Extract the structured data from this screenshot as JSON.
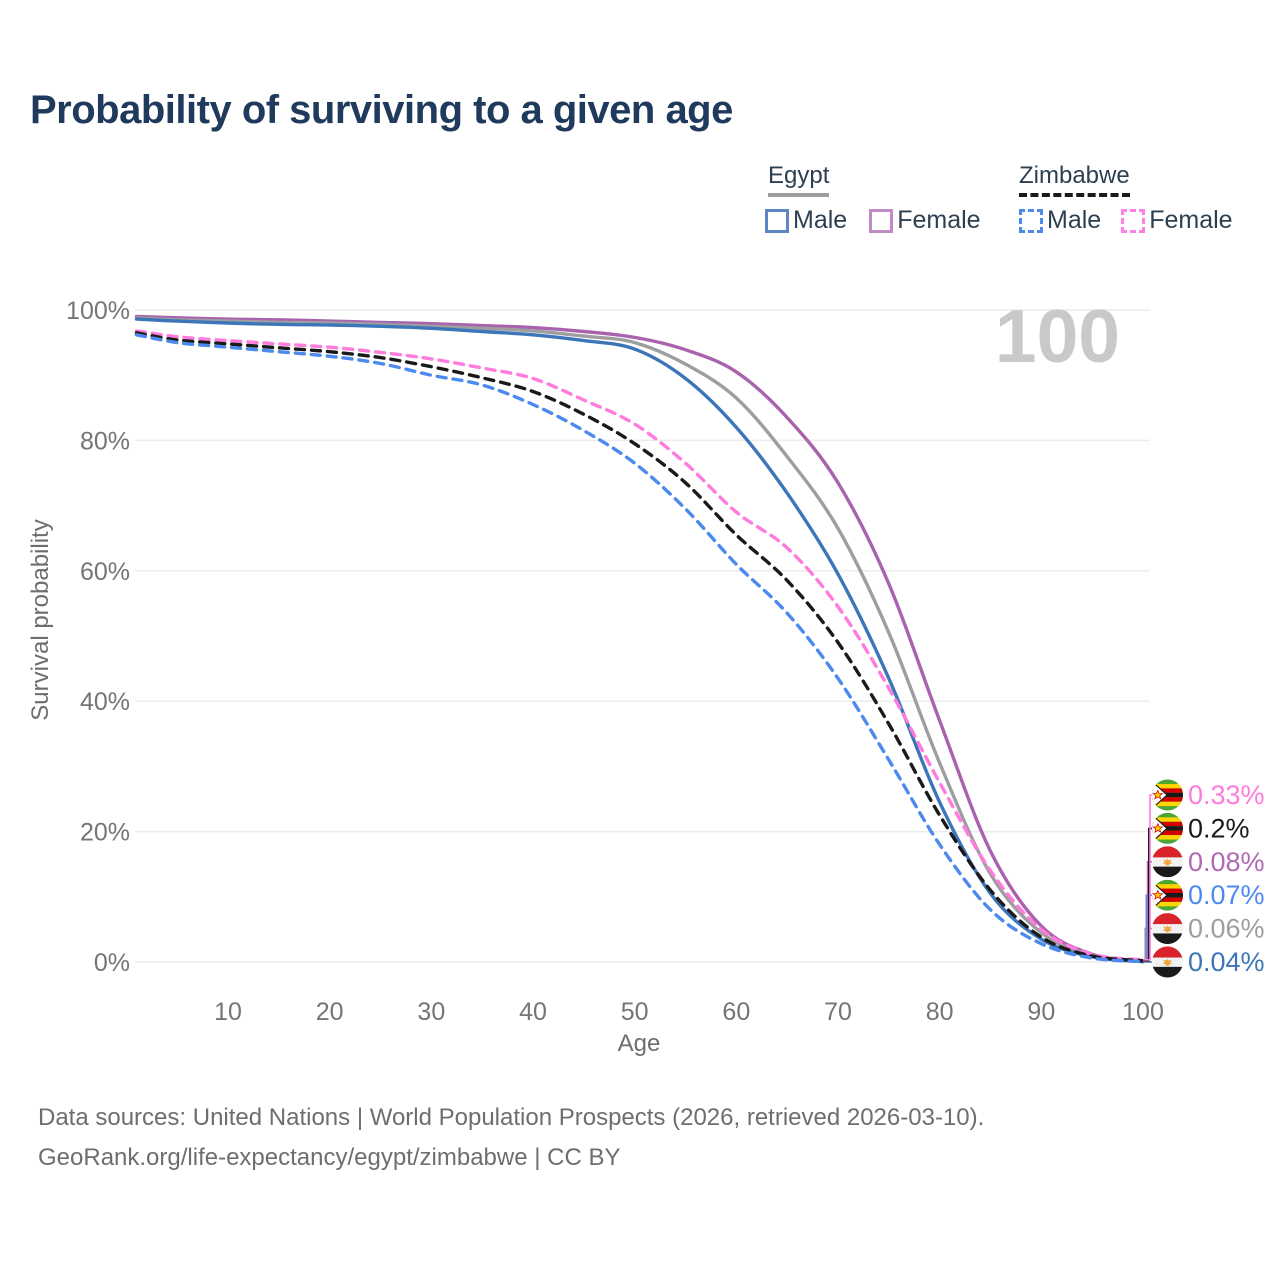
{
  "title": "Probability of surviving to a given age",
  "watermark_age_counter": "100",
  "legend": {
    "groups": [
      {
        "label": "Egypt",
        "line_style": "solid",
        "underline_color": "#9E9EA0",
        "items": [
          {
            "label": "Male",
            "box_color": "#5B85C2",
            "dashed": false
          },
          {
            "label": "Female",
            "box_color": "#C08BC4",
            "dashed": false
          }
        ]
      },
      {
        "label": "Zimbabwe",
        "line_style": "dashed",
        "underline_color": "#1A1A1A",
        "items": [
          {
            "label": "Male",
            "box_color": "#4D8AF0",
            "dashed": true
          },
          {
            "label": "Female",
            "box_color": "#FF80E5",
            "dashed": true
          }
        ]
      }
    ]
  },
  "chart_data": {
    "type": "line",
    "title": "Probability of surviving to a given age",
    "xlabel": "Age",
    "ylabel": "Survival probability",
    "xlim": [
      1,
      100
    ],
    "ylim": [
      0,
      100
    ],
    "grid": "horizontal",
    "xticks": [
      10,
      20,
      30,
      40,
      50,
      60,
      70,
      80,
      90,
      100
    ],
    "yticks": [
      "0%",
      "20%",
      "40%",
      "60%",
      "80%",
      "100%"
    ],
    "x": [
      1,
      5,
      10,
      15,
      20,
      25,
      30,
      35,
      40,
      45,
      50,
      55,
      60,
      65,
      70,
      75,
      80,
      85,
      90,
      95,
      100
    ],
    "series": [
      {
        "name": "Egypt Female",
        "country": "egypt",
        "sex": "female",
        "color": "#A963AE",
        "dashed": false,
        "values": [
          99.0,
          98.8,
          98.6,
          98.5,
          98.3,
          98.1,
          97.9,
          97.6,
          97.3,
          96.7,
          95.8,
          93.9,
          90.5,
          83.5,
          73.5,
          58.0,
          37.0,
          17.0,
          5.5,
          1.2,
          0.08
        ]
      },
      {
        "name": "Egypt Both sexes",
        "country": "egypt",
        "sex": "both",
        "color": "#9E9EA0",
        "dashed": false,
        "values": [
          98.8,
          98.5,
          98.3,
          98.1,
          98.0,
          97.8,
          97.5,
          97.2,
          96.8,
          96.0,
          95.0,
          91.7,
          86.5,
          77.5,
          66.5,
          50.5,
          30.5,
          13.5,
          4.5,
          1.0,
          0.06
        ]
      },
      {
        "name": "Egypt Male",
        "country": "egypt",
        "sex": "male",
        "color": "#3C76B9",
        "dashed": false,
        "values": [
          98.6,
          98.3,
          98.0,
          97.8,
          97.7,
          97.5,
          97.2,
          96.7,
          96.2,
          95.3,
          94.0,
          89.5,
          82.0,
          71.9,
          59.5,
          43.5,
          24.5,
          10.5,
          3.5,
          0.8,
          0.04
        ]
      },
      {
        "name": "Zimbabwe Female",
        "country": "zimbabwe",
        "sex": "female",
        "color": "#FF7BDE",
        "dashed": true,
        "values": [
          96.8,
          95.9,
          95.3,
          94.8,
          94.3,
          93.5,
          92.5,
          91.1,
          89.5,
          86.2,
          82.5,
          76.5,
          69.0,
          63.5,
          54.5,
          42.0,
          27.5,
          14.0,
          5.0,
          1.2,
          0.33
        ]
      },
      {
        "name": "Zimbabwe Both sexes",
        "country": "zimbabwe",
        "sex": "both",
        "color": "#1A1A1A",
        "dashed": true,
        "values": [
          96.5,
          95.4,
          94.8,
          94.2,
          93.6,
          92.7,
          91.3,
          89.6,
          87.5,
          84.0,
          79.5,
          73.5,
          65.5,
          58.5,
          49.0,
          36.5,
          22.5,
          11.0,
          3.8,
          0.9,
          0.2
        ]
      },
      {
        "name": "Zimbabwe Male",
        "country": "zimbabwe",
        "sex": "male",
        "color": "#4D8AF0",
        "dashed": true,
        "values": [
          96.2,
          95.0,
          94.3,
          93.6,
          92.9,
          91.8,
          90.0,
          88.5,
          85.5,
          81.5,
          76.5,
          69.5,
          61.0,
          53.5,
          43.5,
          31.0,
          18.0,
          8.0,
          2.8,
          0.6,
          0.07
        ]
      }
    ],
    "end_labels_bottom_to_top": [
      {
        "text": "0.04%",
        "color": "#3C76B9",
        "flag": "egypt",
        "series": "Egypt Male"
      },
      {
        "text": "0.06%",
        "color": "#9E9EA0",
        "flag": "egypt",
        "series": "Egypt Both sexes"
      },
      {
        "text": "0.07%",
        "color": "#4D8AF0",
        "flag": "zimbabwe",
        "series": "Zimbabwe Male"
      },
      {
        "text": "0.08%",
        "color": "#B06AB4",
        "flag": "egypt",
        "series": "Egypt Female"
      },
      {
        "text": "0.2%",
        "color": "#1A1A1A",
        "flag": "zimbabwe",
        "series": "Zimbabwe Both sexes"
      },
      {
        "text": "0.33%",
        "color": "#FF7BDE",
        "flag": "zimbabwe",
        "series": "Zimbabwe Female"
      }
    ]
  },
  "footer": {
    "line1": "Data sources: United Nations | World Population Prospects (2026, retrieved 2026-03-10).",
    "line2": "GeoRank.org/life-expectancy/egypt/zimbabwe | CC BY"
  }
}
